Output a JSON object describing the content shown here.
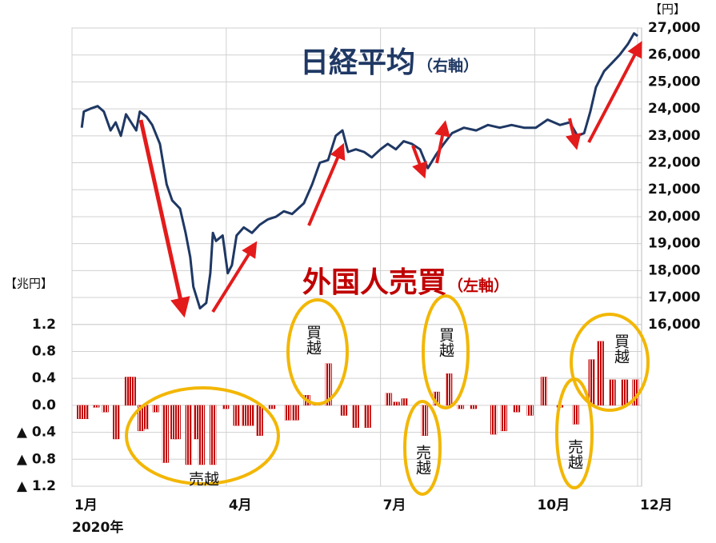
{
  "chart_data": {
    "type": "combo",
    "units_left": "【兆円】",
    "units_right": "【円】",
    "year_label": "2020年",
    "xlim": [
      1,
      12
    ],
    "xticks": [
      {
        "value": 1,
        "label": "1月"
      },
      {
        "value": 4,
        "label": "4月"
      },
      {
        "value": 7,
        "label": "7月"
      },
      {
        "value": 10,
        "label": "10月"
      },
      {
        "value": 12,
        "label": "12月"
      }
    ],
    "ylim": [
      -1.2,
      5.6
    ],
    "yticks": [
      1.2,
      0.8,
      0.4,
      {
        "value": 0,
        "label": "0.0"
      },
      {
        "value": -0.4,
        "label": "▲ 0.4"
      },
      {
        "value": -0.8,
        "label": "▲ 0.8"
      },
      {
        "value": -1.2,
        "label": "▲ 1.2"
      }
    ],
    "y2lim": [
      10000,
      27000
    ],
    "y2ticks": [
      {
        "value": 27000,
        "label": "27,000"
      },
      {
        "value": 26000,
        "label": "26,000"
      },
      {
        "value": 25000,
        "label": "25,000"
      },
      {
        "value": 24000,
        "label": "24,000"
      },
      {
        "value": 23000,
        "label": "23,000"
      },
      {
        "value": 22000,
        "label": "22,000"
      },
      {
        "value": 21000,
        "label": "21,000"
      },
      {
        "value": 20000,
        "label": "20,000"
      },
      {
        "value": 19000,
        "label": "19,000"
      },
      {
        "value": 18000,
        "label": "18,000"
      },
      {
        "value": 17000,
        "label": "17,000"
      },
      {
        "value": 16000,
        "label": "16,000"
      }
    ],
    "grid": true,
    "series": [
      {
        "name": "外国人売買",
        "axis_label": "（左軸）",
        "type": "bar",
        "color": "#c00000",
        "x": [
          1.16,
          1.26,
          1.47,
          1.65,
          1.86,
          2.09,
          2.18,
          2.34,
          2.43,
          2.63,
          2.82,
          2.98,
          3.05,
          3.27,
          3.43,
          3.52,
          3.74,
          3.99,
          4.2,
          4.36,
          4.48,
          4.65,
          4.89,
          5.2,
          5.35,
          5.57,
          5.76,
          5.99,
          6.29,
          6.52,
          6.75,
          7.16,
          7.31,
          7.47,
          7.86,
          8.09,
          8.33,
          8.56,
          8.81,
          9.2,
          9.4,
          9.65,
          9.91,
          10.18,
          10.49,
          10.8,
          11.11,
          11.28,
          11.51,
          11.75,
          11.96
        ],
        "values": [
          -0.2,
          -0.2,
          -0.03,
          -0.1,
          -0.5,
          0.42,
          0.42,
          -0.38,
          -0.35,
          -0.1,
          -0.85,
          -0.5,
          -0.5,
          -0.88,
          -0.5,
          -0.88,
          -0.88,
          -0.05,
          -0.3,
          -0.3,
          -0.3,
          -0.45,
          -0.05,
          -0.22,
          -0.22,
          0.15,
          0.04,
          0.62,
          -0.15,
          -0.33,
          -0.33,
          0.18,
          0.05,
          0.1,
          -0.45,
          0.2,
          0.47,
          -0.05,
          -0.05,
          -0.43,
          -0.38,
          -0.1,
          -0.15,
          0.42,
          -0.03,
          -0.28,
          0.68,
          0.95,
          0.38,
          0.38,
          0.38
        ]
      },
      {
        "name": "日経平均",
        "axis_label": "（右軸）",
        "type": "line",
        "axis": "y2",
        "color": "#1f3864",
        "x": [
          1.19,
          1.23,
          1.35,
          1.5,
          1.62,
          1.75,
          1.85,
          1.95,
          2.05,
          2.15,
          2.25,
          2.32,
          2.45,
          2.56,
          2.71,
          2.84,
          2.95,
          3.1,
          3.21,
          3.3,
          3.36,
          3.49,
          3.61,
          3.69,
          3.74,
          3.8,
          3.93,
          4.03,
          4.11,
          4.2,
          4.34,
          4.5,
          4.65,
          4.81,
          4.97,
          5.12,
          5.28,
          5.51,
          5.67,
          5.82,
          5.98,
          6.13,
          6.26,
          6.37,
          6.52,
          6.68,
          6.83,
          7.0,
          7.14,
          7.3,
          7.45,
          7.61,
          7.77,
          7.92,
          8.08,
          8.23,
          8.39,
          8.62,
          8.86,
          9.09,
          9.32,
          9.55,
          9.79,
          10.02,
          10.25,
          10.49,
          10.68,
          10.83,
          10.96,
          11.08,
          11.19,
          11.35,
          11.5,
          11.65,
          11.81,
          11.93,
          12.0
        ],
        "values": [
          23300,
          23900,
          24000,
          24100,
          23900,
          23200,
          23500,
          23000,
          23800,
          23500,
          23200,
          23900,
          23700,
          23400,
          22700,
          21200,
          20600,
          20300,
          19400,
          18500,
          17400,
          16600,
          16800,
          17900,
          19400,
          19100,
          19300,
          17900,
          18200,
          19300,
          19600,
          19400,
          19700,
          19900,
          20000,
          20200,
          20100,
          20500,
          21200,
          22000,
          22100,
          23000,
          23200,
          22400,
          22500,
          22400,
          22200,
          22500,
          22700,
          22500,
          22800,
          22700,
          22500,
          21800,
          22300,
          22700,
          23100,
          23300,
          23200,
          23400,
          23300,
          23400,
          23300,
          23300,
          23600,
          23400,
          23500,
          23000,
          23100,
          23900,
          24800,
          25400,
          25700,
          26000,
          26400,
          26800,
          26700
        ]
      }
    ],
    "annotations": [
      "売越",
      "買越",
      "売越",
      "買越",
      "売越",
      "買越"
    ]
  }
}
